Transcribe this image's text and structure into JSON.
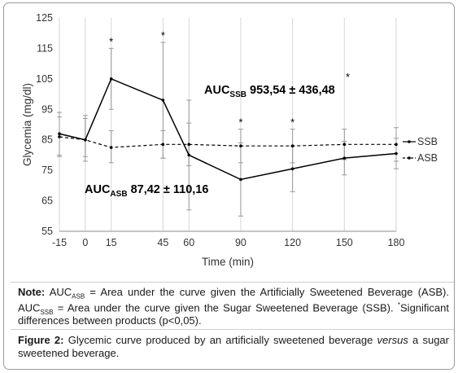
{
  "chart_data": {
    "type": "line",
    "xlabel": "Time (min)",
    "ylabel": "Glycemia (mg/dl)",
    "ylim": [
      55,
      125
    ],
    "yticks": [
      55,
      65,
      75,
      85,
      95,
      105,
      115,
      125
    ],
    "xlim": [
      -15,
      180
    ],
    "xticks": [
      -15,
      0,
      15,
      45,
      60,
      90,
      120,
      150,
      180
    ],
    "grid": "vertical",
    "legend_position": "right",
    "series": [
      {
        "name": "SSB",
        "line_style": "solid",
        "marker": "dot",
        "x": [
          -15,
          0,
          15,
          45,
          60,
          90,
          120,
          150,
          180
        ],
        "y": [
          87,
          85,
          105,
          98,
          80,
          72,
          75.5,
          79,
          80.5
        ],
        "err_low": [
          80,
          78,
          95,
          79,
          62,
          60,
          68,
          73.5,
          75.5
        ],
        "err_high": [
          94,
          92,
          115,
          117,
          98,
          84,
          83,
          84.5,
          85.5
        ]
      },
      {
        "name": "ASB",
        "line_style": "dashed",
        "marker": "dot",
        "x": [
          -15,
          0,
          15,
          45,
          60,
          90,
          120,
          150,
          180
        ],
        "y": [
          86,
          85,
          82.5,
          83.5,
          83.5,
          83,
          83,
          83.5,
          83.5
        ],
        "err_low": [
          79.5,
          79.5,
          77.5,
          79,
          76.5,
          77.5,
          77.5,
          78.5,
          78
        ],
        "err_high": [
          92.5,
          93,
          88,
          88,
          90.5,
          88.5,
          88.5,
          88.5,
          89
        ]
      }
    ],
    "significance_marks": [
      {
        "x": 15,
        "text": "*"
      },
      {
        "x": 45,
        "text": "*"
      },
      {
        "x": 90,
        "text": "*"
      },
      {
        "x": 120,
        "text": "*"
      }
    ],
    "annotations": {
      "auc_ssb": {
        "base": "AUC",
        "sub": "SSB",
        "value": "953,54 ± 436,48",
        "mark": "*"
      },
      "auc_asb": {
        "base": "AUC",
        "sub": "ASB",
        "value": "87,42 ± 110,16"
      }
    }
  },
  "note": {
    "label": "Note:",
    "p1": " AUC",
    "sub1": "ASB",
    "p2": " = Area under the curve given the Artificially Sweetened Beverage (ASB). AUC",
    "sub2": "SSB",
    "p3": " = Area under the curve given the Sugar Sweetened Beverage (SSB). ",
    "mark": "*",
    "p4": "Significant differences between products (p<0,05)."
  },
  "caption": {
    "label": "Figure 2:",
    "p1": " Glycemic curve produced by an artificially sweetened beverage ",
    "italic": "versus",
    "p2": " a sugar sweetened beverage."
  }
}
